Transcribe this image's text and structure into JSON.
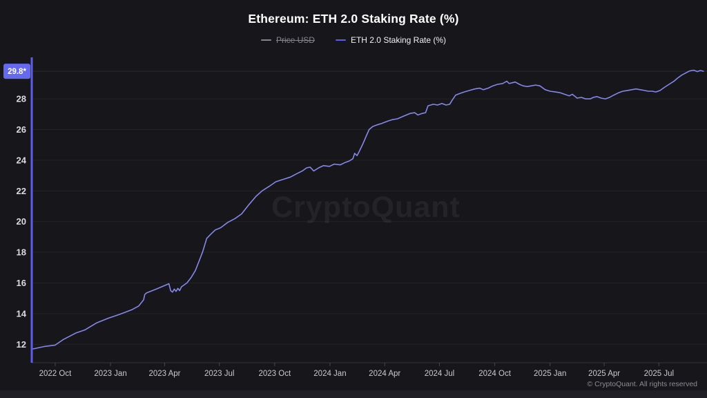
{
  "header": {
    "title": "Ethereum: ETH 2.0 Staking Rate (%)",
    "legend": [
      {
        "label": "Price USD",
        "disabled": true
      },
      {
        "label": "ETH 2.0 Staking Rate (%)",
        "disabled": false
      }
    ]
  },
  "watermark": "CryptoQuant",
  "footer": {
    "copyright": "© CryptoQuant. All rights reserved"
  },
  "colors": {
    "background": "#17171b",
    "series_line": "#8588ea",
    "axis_line": "#5e5ee8",
    "badge_background": "#6569ee",
    "badge_text": "#ffffff",
    "grid": "rgba(255,255,255,0.055)",
    "y_label": "#dcdce0",
    "x_label": "#c9c9ce",
    "disabled_legend": "#85858d"
  },
  "chart_data": {
    "type": "line",
    "title": "Ethereum: ETH 2.0 Staking Rate (%)",
    "series_name": "ETH 2.0 Staking Rate (%)",
    "hidden_series": "Price USD",
    "current_value": 29.8,
    "current_value_label": "29.8*",
    "ylabel": "",
    "xlabel": "",
    "ylim": [
      11.2,
      30.2
    ],
    "grid": "horizontal",
    "legend_position": "top",
    "y_ticks": [
      12,
      14,
      16,
      18,
      20,
      22,
      24,
      26,
      28
    ],
    "x_ticks": [
      {
        "label": "2022 Oct",
        "date": "2022-10-01"
      },
      {
        "label": "2023 Jan",
        "date": "2023-01-01"
      },
      {
        "label": "2023 Apr",
        "date": "2023-04-01"
      },
      {
        "label": "2023 Jul",
        "date": "2023-07-01"
      },
      {
        "label": "2023 Oct",
        "date": "2023-10-01"
      },
      {
        "label": "2024 Jan",
        "date": "2024-01-01"
      },
      {
        "label": "2024 Apr",
        "date": "2024-04-01"
      },
      {
        "label": "2024 Jul",
        "date": "2024-07-01"
      },
      {
        "label": "2024 Oct",
        "date": "2024-10-01"
      },
      {
        "label": "2025 Jan",
        "date": "2025-01-01"
      },
      {
        "label": "2025 Apr",
        "date": "2025-04-01"
      },
      {
        "label": "2025 Jul",
        "date": "2025-07-01"
      }
    ],
    "points": [
      [
        "2022-08-25",
        11.7
      ],
      [
        "2022-09-12",
        11.85
      ],
      [
        "2022-10-01",
        11.95
      ],
      [
        "2022-10-14",
        12.3
      ],
      [
        "2022-11-05",
        12.75
      ],
      [
        "2022-11-20",
        12.95
      ],
      [
        "2022-12-09",
        13.4
      ],
      [
        "2022-12-28",
        13.7
      ],
      [
        "2023-01-16",
        13.95
      ],
      [
        "2023-02-05",
        14.25
      ],
      [
        "2023-02-17",
        14.5
      ],
      [
        "2023-02-25",
        14.9
      ],
      [
        "2023-02-27",
        15.25
      ],
      [
        "2023-03-02",
        15.35
      ],
      [
        "2023-03-18",
        15.6
      ],
      [
        "2023-04-08",
        15.95
      ],
      [
        "2023-04-11",
        15.5
      ],
      [
        "2023-04-14",
        15.4
      ],
      [
        "2023-04-17",
        15.6
      ],
      [
        "2023-04-20",
        15.45
      ],
      [
        "2023-04-23",
        15.65
      ],
      [
        "2023-04-26",
        15.5
      ],
      [
        "2023-04-29",
        15.75
      ],
      [
        "2023-05-08",
        16.0
      ],
      [
        "2023-05-15",
        16.35
      ],
      [
        "2023-05-22",
        16.8
      ],
      [
        "2023-05-28",
        17.4
      ],
      [
        "2023-06-03",
        18.0
      ],
      [
        "2023-06-10",
        18.9
      ],
      [
        "2023-06-16",
        19.15
      ],
      [
        "2023-06-24",
        19.45
      ],
      [
        "2023-07-03",
        19.6
      ],
      [
        "2023-07-15",
        19.95
      ],
      [
        "2023-07-27",
        20.2
      ],
      [
        "2023-08-07",
        20.5
      ],
      [
        "2023-08-19",
        21.1
      ],
      [
        "2023-08-31",
        21.65
      ],
      [
        "2023-09-10",
        22.0
      ],
      [
        "2023-09-22",
        22.3
      ],
      [
        "2023-10-03",
        22.6
      ],
      [
        "2023-10-15",
        22.75
      ],
      [
        "2023-10-27",
        22.9
      ],
      [
        "2023-11-08",
        23.15
      ],
      [
        "2023-11-16",
        23.3
      ],
      [
        "2023-11-23",
        23.5
      ],
      [
        "2023-11-29",
        23.55
      ],
      [
        "2023-12-05",
        23.3
      ],
      [
        "2023-12-13",
        23.5
      ],
      [
        "2023-12-21",
        23.65
      ],
      [
        "2023-12-31",
        23.6
      ],
      [
        "2024-01-08",
        23.75
      ],
      [
        "2024-01-18",
        23.7
      ],
      [
        "2024-01-26",
        23.85
      ],
      [
        "2024-02-02",
        23.95
      ],
      [
        "2024-02-08",
        24.1
      ],
      [
        "2024-02-11",
        24.45
      ],
      [
        "2024-02-15",
        24.3
      ],
      [
        "2024-02-19",
        24.6
      ],
      [
        "2024-02-25",
        25.1
      ],
      [
        "2024-03-01",
        25.55
      ],
      [
        "2024-03-06",
        26.0
      ],
      [
        "2024-03-12",
        26.2
      ],
      [
        "2024-03-19",
        26.3
      ],
      [
        "2024-03-27",
        26.4
      ],
      [
        "2024-04-06",
        26.55
      ],
      [
        "2024-04-14",
        26.65
      ],
      [
        "2024-04-22",
        26.7
      ],
      [
        "2024-05-01",
        26.85
      ],
      [
        "2024-05-13",
        27.05
      ],
      [
        "2024-05-21",
        27.1
      ],
      [
        "2024-05-26",
        26.95
      ],
      [
        "2024-06-02",
        27.05
      ],
      [
        "2024-06-08",
        27.1
      ],
      [
        "2024-06-12",
        27.55
      ],
      [
        "2024-06-21",
        27.65
      ],
      [
        "2024-06-28",
        27.6
      ],
      [
        "2024-07-05",
        27.7
      ],
      [
        "2024-07-12",
        27.6
      ],
      [
        "2024-07-18",
        27.65
      ],
      [
        "2024-07-22",
        27.9
      ],
      [
        "2024-07-28",
        28.25
      ],
      [
        "2024-08-04",
        28.35
      ],
      [
        "2024-08-11",
        28.45
      ],
      [
        "2024-08-20",
        28.55
      ],
      [
        "2024-08-29",
        28.65
      ],
      [
        "2024-09-06",
        28.7
      ],
      [
        "2024-09-12",
        28.6
      ],
      [
        "2024-09-20",
        28.7
      ],
      [
        "2024-09-28",
        28.85
      ],
      [
        "2024-10-06",
        28.95
      ],
      [
        "2024-10-14",
        29.0
      ],
      [
        "2024-10-21",
        29.15
      ],
      [
        "2024-10-25",
        29.0
      ],
      [
        "2024-10-30",
        29.05
      ],
      [
        "2024-11-04",
        29.1
      ],
      [
        "2024-11-11",
        28.95
      ],
      [
        "2024-11-17",
        28.85
      ],
      [
        "2024-11-24",
        28.8
      ],
      [
        "2024-12-01",
        28.85
      ],
      [
        "2024-12-08",
        28.9
      ],
      [
        "2024-12-15",
        28.85
      ],
      [
        "2024-12-24",
        28.6
      ],
      [
        "2025-01-01",
        28.5
      ],
      [
        "2025-01-10",
        28.45
      ],
      [
        "2025-01-18",
        28.4
      ],
      [
        "2025-01-25",
        28.3
      ],
      [
        "2025-02-02",
        28.2
      ],
      [
        "2025-02-07",
        28.3
      ],
      [
        "2025-02-15",
        28.05
      ],
      [
        "2025-02-22",
        28.1
      ],
      [
        "2025-03-01",
        28.0
      ],
      [
        "2025-03-09",
        28.0
      ],
      [
        "2025-03-14",
        28.1
      ],
      [
        "2025-03-20",
        28.15
      ],
      [
        "2025-03-27",
        28.05
      ],
      [
        "2025-04-03",
        28.0
      ],
      [
        "2025-04-10",
        28.1
      ],
      [
        "2025-04-17",
        28.25
      ],
      [
        "2025-04-25",
        28.4
      ],
      [
        "2025-05-02",
        28.5
      ],
      [
        "2025-05-10",
        28.55
      ],
      [
        "2025-05-17",
        28.6
      ],
      [
        "2025-05-24",
        28.65
      ],
      [
        "2025-05-31",
        28.6
      ],
      [
        "2025-06-07",
        28.55
      ],
      [
        "2025-06-13",
        28.5
      ],
      [
        "2025-06-20",
        28.5
      ],
      [
        "2025-06-26",
        28.45
      ],
      [
        "2025-07-03",
        28.55
      ],
      [
        "2025-07-10",
        28.75
      ],
      [
        "2025-07-18",
        28.95
      ],
      [
        "2025-07-26",
        29.15
      ],
      [
        "2025-08-01",
        29.35
      ],
      [
        "2025-08-08",
        29.55
      ],
      [
        "2025-08-15",
        29.7
      ],
      [
        "2025-08-21",
        29.82
      ],
      [
        "2025-08-28",
        29.87
      ],
      [
        "2025-09-03",
        29.78
      ],
      [
        "2025-09-08",
        29.85
      ],
      [
        "2025-09-13",
        29.8
      ]
    ]
  }
}
